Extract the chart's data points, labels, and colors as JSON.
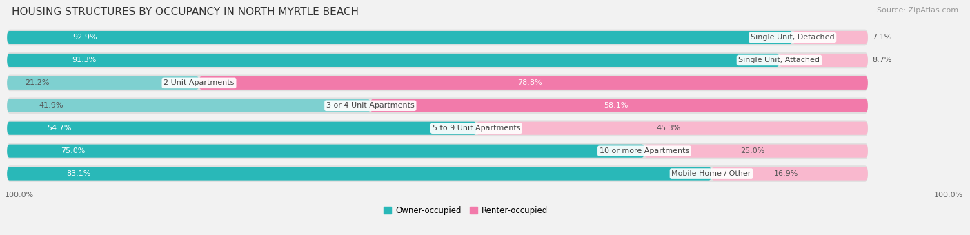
{
  "title": "HOUSING STRUCTURES BY OCCUPANCY IN NORTH MYRTLE BEACH",
  "source": "Source: ZipAtlas.com",
  "categories": [
    "Single Unit, Detached",
    "Single Unit, Attached",
    "2 Unit Apartments",
    "3 or 4 Unit Apartments",
    "5 to 9 Unit Apartments",
    "10 or more Apartments",
    "Mobile Home / Other"
  ],
  "owner_pct": [
    92.9,
    91.3,
    21.2,
    41.9,
    54.7,
    75.0,
    83.1
  ],
  "renter_pct": [
    7.1,
    8.7,
    78.8,
    58.1,
    45.3,
    25.0,
    16.9
  ],
  "owner_color_dark": "#29b8b8",
  "owner_color_light": "#7ed0d0",
  "renter_color_dark": "#f27aaa",
  "renter_color_light": "#f9b8ce",
  "bg_color": "#f2f2f2",
  "row_bg_color": "#e0e0e0",
  "title_fontsize": 11,
  "label_fontsize": 8,
  "tick_fontsize": 8,
  "source_fontsize": 8,
  "legend_fontsize": 8.5,
  "legend_label_owner": "Owner-occupied",
  "legend_label_renter": "Renter-occupied",
  "bottom_label": "100.0%"
}
